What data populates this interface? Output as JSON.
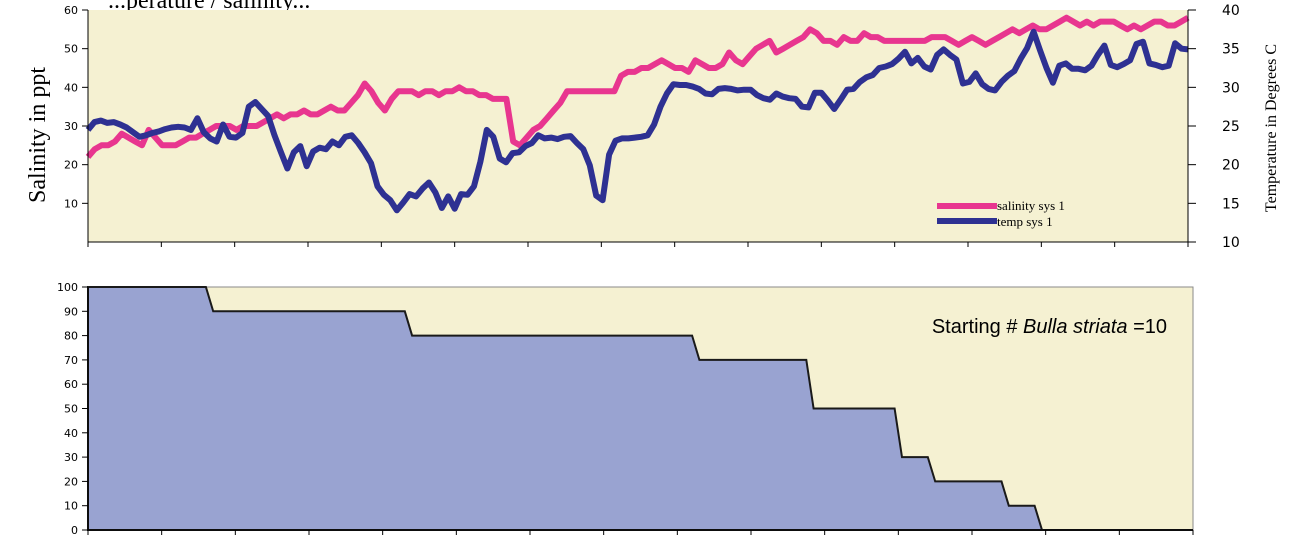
{
  "header_fragment": "...perature / salinity...",
  "chart_data": [
    {
      "type": "line",
      "title": "",
      "ylabel": "Salinity in ppt",
      "ylabel_right": "Temperature in Degrees C",
      "ylim": [
        0,
        60
      ],
      "ylim_right": [
        10,
        40
      ],
      "left_ticks": [
        "10",
        "20",
        "30",
        "40",
        "50",
        "60"
      ],
      "right_ticks": [
        "10",
        "15",
        "20",
        "25",
        "30",
        "35",
        "40"
      ],
      "x_count": 15,
      "grid": false,
      "legend_position": "bottom-right",
      "series": [
        {
          "name": "salinity sys 1",
          "axis": "left",
          "color": "#e8368f",
          "values": [
            22,
            24,
            25,
            25,
            26,
            28,
            27,
            26,
            25,
            29,
            27,
            25,
            25,
            25,
            26,
            27,
            27,
            28,
            29,
            30,
            30,
            30,
            29,
            30,
            30,
            30,
            31,
            32,
            33,
            32,
            33,
            33,
            34,
            33,
            33,
            34,
            35,
            34,
            34,
            36,
            38,
            41,
            39,
            36,
            34,
            37,
            39,
            39,
            39,
            38,
            39,
            39,
            38,
            39,
            39,
            40,
            39,
            39,
            38,
            38,
            37,
            37,
            37,
            26,
            25,
            27,
            29,
            30,
            32,
            34,
            36,
            39,
            39,
            39,
            39,
            39,
            39,
            39,
            39,
            43,
            44,
            44,
            45,
            45,
            46,
            47,
            46,
            45,
            45,
            44,
            47,
            46,
            45,
            45,
            46,
            49,
            47,
            46,
            48,
            50,
            51,
            52,
            49,
            50,
            51,
            52,
            53,
            55,
            54,
            52,
            52,
            51,
            53,
            52,
            52,
            54,
            53,
            53,
            52,
            52,
            52,
            52,
            52,
            52,
            52,
            53,
            53,
            53,
            52,
            51,
            52,
            53,
            52,
            51,
            52,
            53,
            54,
            55,
            54,
            55,
            56,
            55,
            55,
            56,
            57,
            58,
            57,
            56,
            57,
            56,
            57,
            57,
            57,
            56,
            55,
            56,
            55,
            56,
            57,
            57,
            56,
            56,
            57,
            58
          ]
        },
        {
          "name": "temp sys 1",
          "axis": "right",
          "color": "#2e3192",
          "values": [
            24.5,
            25.5,
            25.7,
            25.4,
            25.5,
            25.2,
            24.8,
            24.2,
            23.6,
            23.8,
            24.1,
            24.3,
            24.6,
            24.8,
            24.9,
            24.8,
            24.5,
            26,
            24.2,
            23.4,
            23,
            25.2,
            23.6,
            23.5,
            24.1,
            27.5,
            28.1,
            27.2,
            26.3,
            23.8,
            21.6,
            19.5,
            21.6,
            22.4,
            19.8,
            21.7,
            22.2,
            22,
            23,
            22.5,
            23.6,
            23.8,
            22.8,
            21.6,
            20.2,
            17.2,
            16.1,
            15.4,
            14.1,
            15.1,
            16.2,
            15.9,
            16.9,
            17.7,
            16.4,
            14.4,
            15.9,
            14.3,
            16.2,
            16.1,
            17.2,
            20.4,
            24.5,
            23.6,
            20.8,
            20.3,
            21.5,
            21.6,
            22.4,
            22.8,
            23.8,
            23.4,
            23.5,
            23.3,
            23.6,
            23.7,
            22.8,
            22,
            19.9,
            16,
            15.4,
            21.3,
            23.1,
            23.4,
            23.4,
            23.5,
            23.6,
            23.8,
            25.2,
            27.5,
            29.2,
            30.4,
            30.3,
            30.3,
            30.1,
            29.8,
            29.2,
            29.1,
            29.8,
            29.9,
            29.8,
            29.6,
            29.7,
            29.7,
            29,
            28.6,
            28.4,
            29.2,
            28.8,
            28.6,
            28.5,
            27.5,
            27.4,
            29.3,
            29.3,
            28.3,
            27.2,
            28.4,
            29.7,
            29.8,
            30.7,
            31.3,
            31.6,
            32.5,
            32.7,
            33,
            33.7,
            34.6,
            33.1,
            33.8,
            32.7,
            32.3,
            34.2,
            34.9,
            34.2,
            33.6,
            30.5,
            30.7,
            31.8,
            30.4,
            29.8,
            29.6,
            30.7,
            31.5,
            32.1,
            33.7,
            35.1,
            37.2,
            34.8,
            32.5,
            30.6,
            32.8,
            33.1,
            32.4,
            32.4,
            32.2,
            32.8,
            34.2,
            35.4,
            32.9,
            32.6,
            33,
            33.5,
            35.6,
            35.9,
            33.1,
            32.9,
            32.6,
            32.8,
            35.7,
            35,
            34.9
          ]
        }
      ]
    },
    {
      "type": "area",
      "title": "",
      "ylim": [
        0,
        100
      ],
      "left_ticks": [
        "0",
        "10",
        "20",
        "30",
        "40",
        "50",
        "60",
        "70",
        "80",
        "90",
        "100"
      ],
      "x_count": 15,
      "fill_color": "#99a3d1",
      "annotation": {
        "prefix": "Starting # ",
        "species": "Bulla striata",
        "suffix": " =10"
      },
      "steps": [
        {
          "x0": 0,
          "x1": 1.6,
          "value": 100
        },
        {
          "x0": 1.7,
          "x1": 4.3,
          "value": 90
        },
        {
          "x0": 4.4,
          "x1": 8.2,
          "value": 80
        },
        {
          "x0": 8.3,
          "x1": 9.75,
          "value": 70
        },
        {
          "x0": 9.85,
          "x1": 10.95,
          "value": 50
        },
        {
          "x0": 11.05,
          "x1": 11.4,
          "value": 30
        },
        {
          "x0": 11.5,
          "x1": 12.4,
          "value": 20
        },
        {
          "x0": 12.5,
          "x1": 12.85,
          "value": 10
        },
        {
          "x0": 12.95,
          "x1": 15,
          "value": 0
        }
      ]
    }
  ]
}
